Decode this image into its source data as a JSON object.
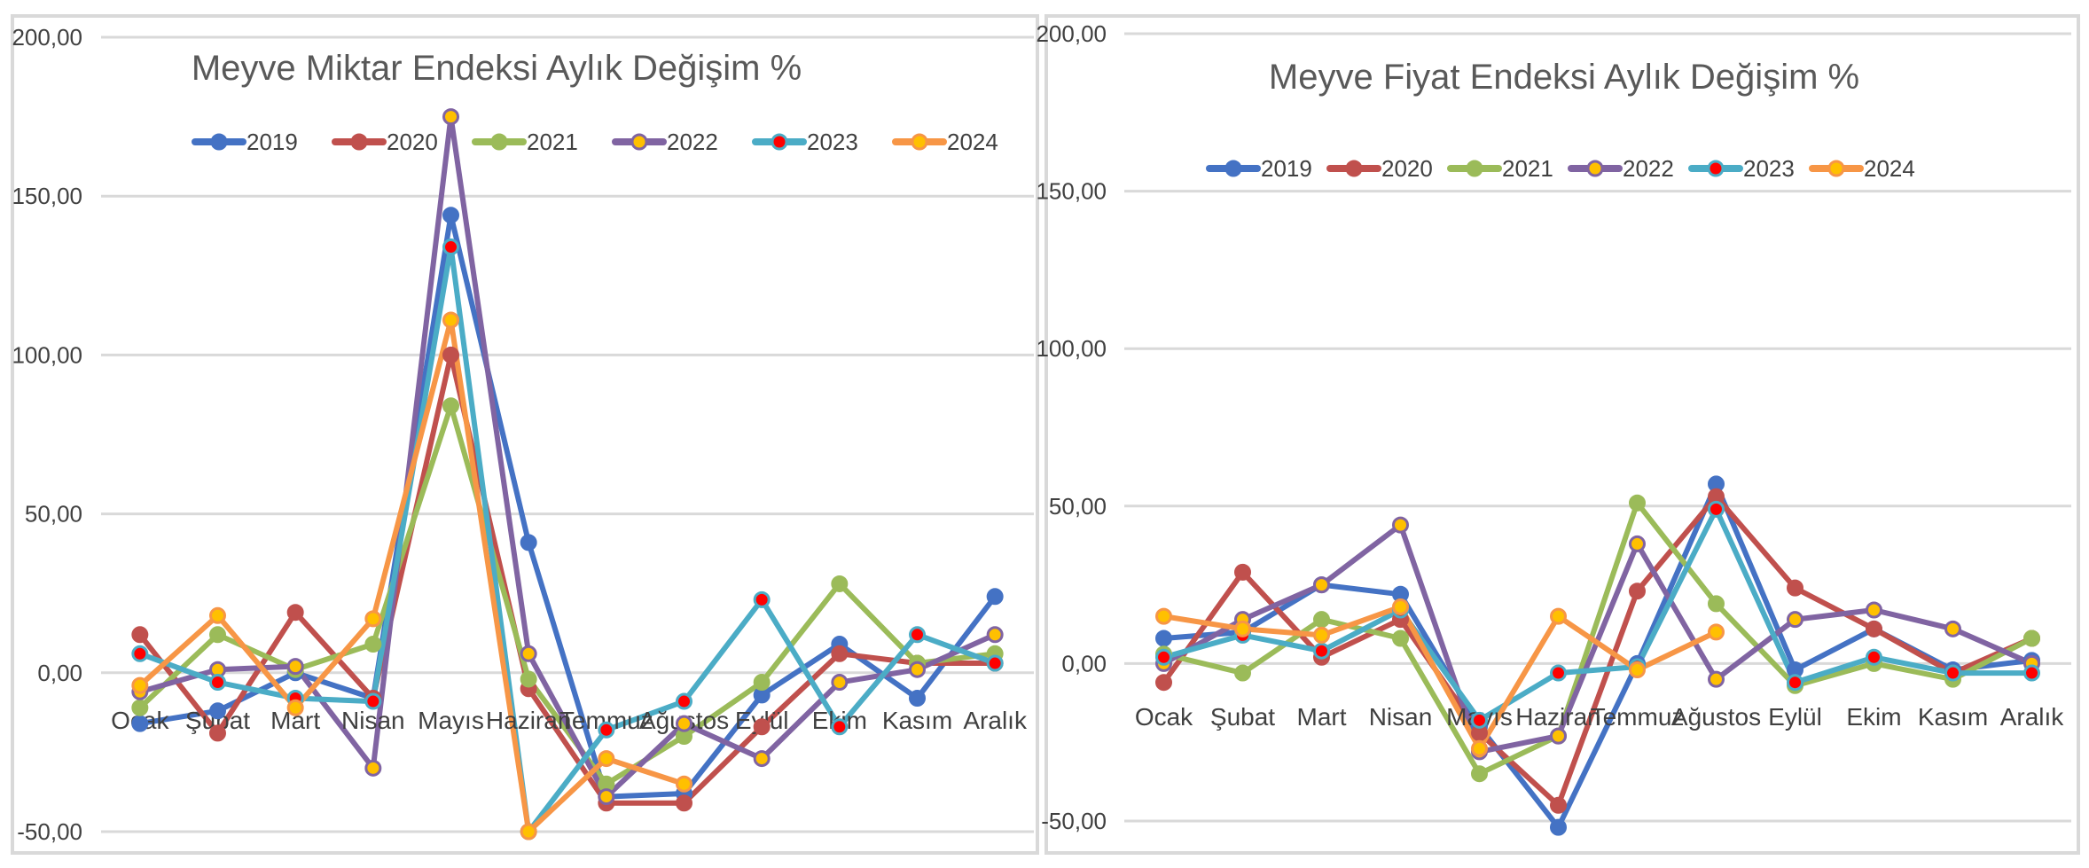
{
  "chart_data": [
    {
      "type": "line",
      "title": "Meyve Miktar Endeksi Aylık Değişim %",
      "categories": [
        "Ocak",
        "Şubat",
        "Mart",
        "Nisan",
        "Mayıs",
        "Haziran",
        "Temmuz",
        "Ağustos",
        "Eylül",
        "Ekim",
        "Kasım",
        "Aralık"
      ],
      "ylim": [
        -50,
        200
      ],
      "yticks": [
        "200,00",
        "150,00",
        "100,00",
        "50,00",
        "0,00",
        "-50,00"
      ],
      "ytick_values": [
        200,
        150,
        100,
        50,
        0,
        -50
      ],
      "grid": true,
      "legend_position": "top",
      "series": [
        {
          "name": "2019",
          "color": "#4472c4",
          "marker_fill": "#4472c4",
          "values": [
            -16,
            -12,
            0,
            -8,
            144,
            41,
            -39,
            -38,
            -7,
            9,
            -8,
            24
          ]
        },
        {
          "name": "2020",
          "color": "#c0504d",
          "marker_fill": "#c0504d",
          "values": [
            12,
            -19,
            19,
            -8,
            100,
            -5,
            -41,
            -41,
            -17,
            6,
            3,
            3
          ]
        },
        {
          "name": "2021",
          "color": "#9bbb59",
          "marker_fill": "#9bbb59",
          "values": [
            -11,
            12,
            1,
            9,
            84,
            -2,
            -35,
            -20,
            -3,
            28,
            3,
            6
          ]
        },
        {
          "name": "2022",
          "color": "#8064a2",
          "marker_fill": "#ffc000",
          "values": [
            -6,
            1,
            2,
            -30,
            175,
            6,
            -39,
            -16,
            -27,
            -3,
            1,
            12
          ]
        },
        {
          "name": "2023",
          "color": "#4bacc6",
          "marker_fill": "#ff0000",
          "values": [
            6,
            -3,
            -8,
            -9,
            134,
            -50,
            -18,
            -9,
            23,
            -17,
            12,
            3
          ]
        },
        {
          "name": "2024",
          "color": "#f79646",
          "marker_fill": "#ffc000",
          "values": [
            -4,
            18,
            -11,
            17,
            111,
            -50,
            -27,
            -35,
            null,
            null,
            null,
            null
          ]
        }
      ]
    },
    {
      "type": "line",
      "title": "Meyve Fiyat Endeksi Aylık Değişim %",
      "categories": [
        "Ocak",
        "Şubat",
        "Mart",
        "Nisan",
        "Mayıs",
        "Haziran",
        "Temmuz",
        "Ağustos",
        "Eylül",
        "Ekim",
        "Kasım",
        "Aralık"
      ],
      "ylim": [
        -50,
        200
      ],
      "yticks": [
        "200,00",
        "150,00",
        "100,00",
        "50,00",
        "0,00",
        "-50,00"
      ],
      "ytick_values": [
        200,
        150,
        100,
        50,
        0,
        -50
      ],
      "grid": true,
      "legend_position": "top",
      "series": [
        {
          "name": "2019",
          "color": "#4472c4",
          "marker_fill": "#4472c4",
          "values": [
            8,
            10,
            25,
            22,
            -20,
            -52,
            0,
            57,
            -2,
            11,
            -2,
            1
          ]
        },
        {
          "name": "2020",
          "color": "#c0504d",
          "marker_fill": "#c0504d",
          "values": [
            -6,
            29,
            2,
            14,
            -22,
            -45,
            23,
            53,
            24,
            11,
            -3,
            8
          ]
        },
        {
          "name": "2021",
          "color": "#9bbb59",
          "marker_fill": "#9bbb59",
          "values": [
            3,
            -3,
            14,
            8,
            -35,
            -23,
            51,
            19,
            -7,
            0,
            -5,
            8
          ]
        },
        {
          "name": "2022",
          "color": "#8064a2",
          "marker_fill": "#ffc000",
          "values": [
            0,
            14,
            25,
            44,
            -28,
            -23,
            38,
            -5,
            14,
            17,
            11,
            0
          ]
        },
        {
          "name": "2023",
          "color": "#4bacc6",
          "marker_fill": "#ff0000",
          "values": [
            2,
            9,
            4,
            17,
            -18,
            -3,
            -1,
            49,
            -6,
            2,
            -3,
            -3
          ]
        },
        {
          "name": "2024",
          "color": "#f79646",
          "marker_fill": "#ffc000",
          "values": [
            15,
            11,
            9,
            18,
            -27,
            15,
            -2,
            10,
            null,
            null,
            null,
            null
          ]
        }
      ]
    }
  ]
}
